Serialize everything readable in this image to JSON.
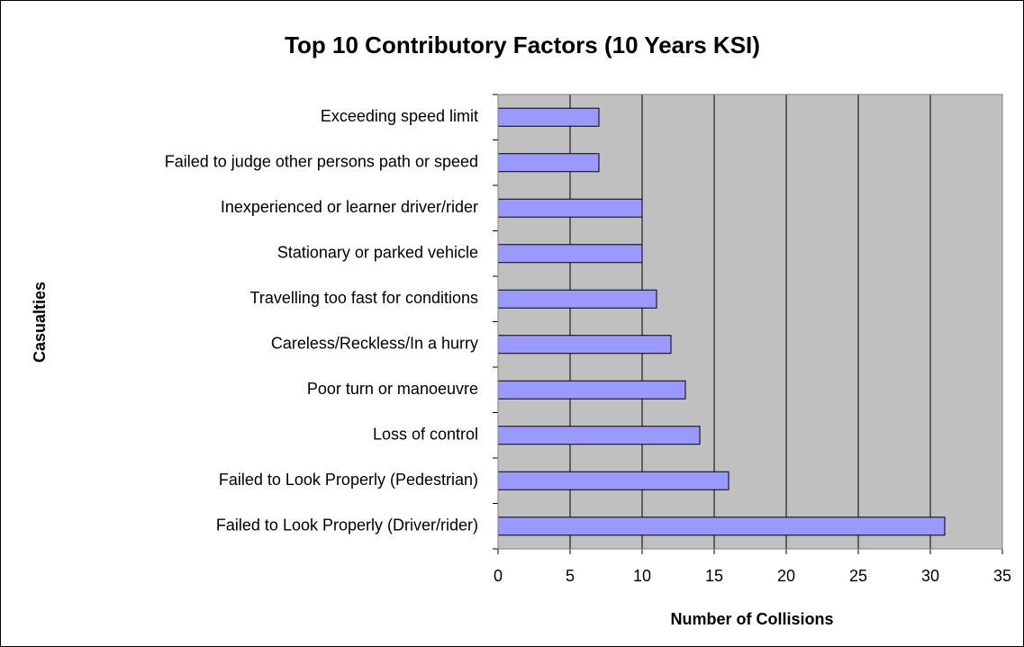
{
  "chart_data": {
    "type": "bar",
    "orientation": "horizontal",
    "title": "Top 10 Contributory Factors (10 Years KSI)",
    "x_label": "Number of Collisions",
    "y_label": "Casualties",
    "categories": [
      "Exceeding speed limit",
      "Failed to judge other persons path or speed",
      "Inexperienced or learner driver/rider",
      "Stationary or parked vehicle",
      "Travelling too fast for conditions",
      "Careless/Reckless/In a hurry",
      "Poor turn or manoeuvre",
      "Loss of control",
      "Failed to Look Properly (Pedestrian)",
      "Failed to Look Properly (Driver/rider)"
    ],
    "values": [
      7,
      7,
      10,
      10,
      11,
      12,
      13,
      14,
      16,
      31
    ],
    "color": "#9999ff",
    "plot_background": "#c0c0c0",
    "xlim": [
      0,
      35
    ],
    "xticks": [
      0,
      5,
      10,
      15,
      20,
      25,
      30,
      35
    ],
    "grid": true
  }
}
